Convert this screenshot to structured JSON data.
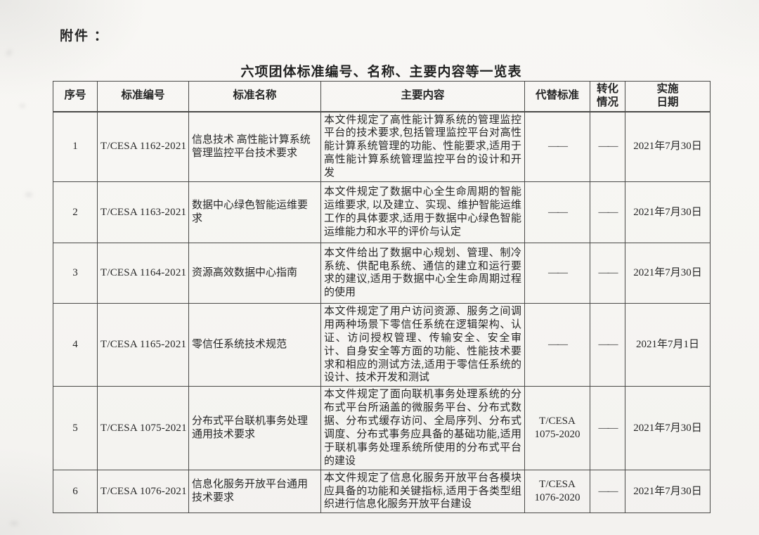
{
  "page": {
    "attachment_label": "附件 ：",
    "title": "六项团体标准编号、名称、主要内容等一览表"
  },
  "table": {
    "headers": [
      "序号",
      "标准编号",
      "标准名称",
      "主要内容",
      "代替标准",
      "转化\n情况",
      "实施\n日期"
    ],
    "rows": [
      {
        "no": "1",
        "code": "T/CESA 1162-2021",
        "name": "信息技术 高性能计算系统管理监控平台技术要求",
        "content": "本文件规定了高性能计算系统的管理监控平台的技术要求,包括管理监控平台对高性能计算系统管理的功能、性能要求,适用于高性能计算系统管理监控平台的设计和开发",
        "replaces": "——",
        "conversion": "——",
        "date": "2021年7月30日"
      },
      {
        "no": "2",
        "code": "T/CESA 1163-2021",
        "name": "数据中心绿色智能运维要求",
        "content": "本文件规定了数据中心全生命周期的智能运维要求, 以及建立、实现、维护智能运维工作的具体要求,适用于数据中心绿色智能运维能力和水平的评价与认定",
        "replaces": "——",
        "conversion": "——",
        "date": "2021年7月30日"
      },
      {
        "no": "3",
        "code": "T/CESA 1164-2021",
        "name": "资源高效数据中心指南",
        "content": "本文件给出了数据中心规划、管理、制冷系统、供配电系统、通信的建立和运行要求的建议,适用于数据中心全生命周期过程的使用",
        "replaces": "——",
        "conversion": "——",
        "date": "2021年7月30日"
      },
      {
        "no": "4",
        "code": "T/CESA 1165-2021",
        "name": "零信任系统技术规范",
        "content": "本文件规定了用户访问资源、服务之间调用两种场景下零信任系统在逻辑架构、认证、访问授权管理、传输安全、安全审计、自身安全等方面的功能、性能技术要求和相应的测试方法,适用于零信任系统的设计、技术开发和测试",
        "replaces": "——",
        "conversion": "——",
        "date": "2021年7月1日"
      },
      {
        "no": "5",
        "code": "T/CESA 1075-2021",
        "name": "分布式平台联机事务处理通用技术要求",
        "content": "本文件规定了面向联机事务处理系统的分布式平台所涵盖的微服务平台、分布式数据、分布式缓存访问、全局序列、分布式调度、分布式事务应具备的基础功能,适用于联机事务处理系统所使用的分布式平台的建设",
        "replaces": "T/CESA\n1075-2020",
        "conversion": "——",
        "date": "2021年7月30日"
      },
      {
        "no": "6",
        "code": "T/CESA 1076-2021",
        "name": "信息化服务开放平台通用技术要求",
        "content": "本文件规定了信息化服务开放平台各模块应具备的功能和关键指标,适用于各类型组织进行信息化服务开放平台建设",
        "replaces": "T/CESA\n1076-2020",
        "conversion": "——",
        "date": "2021年7月30日"
      }
    ]
  }
}
